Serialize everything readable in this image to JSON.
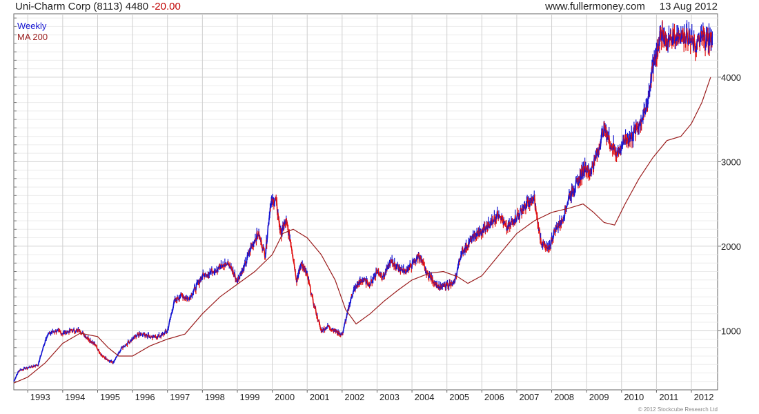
{
  "header": {
    "ticker": "Uni-Charm Corp (8113) 4480",
    "change": "-20.00",
    "site": "www.fullermoney.com",
    "date": "13 Aug 2012"
  },
  "legend": {
    "series1": "Weekly",
    "series2": "MA 200"
  },
  "copyright": "© 2012 Stockcube Research Ltd",
  "colors": {
    "up": "#1414d2",
    "down": "#e01010",
    "ma": "#9a1c1c",
    "grid": "#d7d7d7",
    "frame": "#666666"
  },
  "chart_data": {
    "type": "line",
    "title": "Uni-Charm Corp (8113) 4480 -20.00",
    "xlabel": "",
    "ylabel": "",
    "xlim": [
      1992.6,
      2012.75
    ],
    "ylim": [
      300,
      4750
    ],
    "y_ticks": [
      1000,
      2000,
      3000,
      4000
    ],
    "x_ticks": [
      "1993",
      "1994",
      "1995",
      "1996",
      "1997",
      "1998",
      "1999",
      "2000",
      "2001",
      "2002",
      "2003",
      "2004",
      "2005",
      "2006",
      "2007",
      "2008",
      "2009",
      "2010",
      "2011",
      "2012"
    ],
    "series": [
      {
        "name": "Weekly",
        "x": [
          1992.6,
          1992.75,
          1993.0,
          1993.3,
          1993.55,
          1993.8,
          1994.0,
          1994.25,
          1994.5,
          1994.7,
          1994.9,
          1995.1,
          1995.3,
          1995.45,
          1995.7,
          1996.0,
          1996.2,
          1996.4,
          1996.6,
          1996.8,
          1997.0,
          1997.2,
          1997.4,
          1997.6,
          1997.8,
          1998.0,
          1998.25,
          1998.5,
          1998.75,
          1999.0,
          1999.2,
          1999.4,
          1999.6,
          1999.8,
          1999.95,
          2000.1,
          2000.25,
          2000.4,
          2000.55,
          2000.7,
          2000.85,
          2001.0,
          2001.2,
          2001.4,
          2001.6,
          2001.8,
          2002.0,
          2002.15,
          2002.3,
          2002.45,
          2002.6,
          2002.8,
          2003.0,
          2003.2,
          2003.4,
          2003.6,
          2003.8,
          2004.0,
          2004.2,
          2004.4,
          2004.6,
          2004.8,
          2005.0,
          2005.2,
          2005.4,
          2005.55,
          2005.75,
          2005.9,
          2006.1,
          2006.3,
          2006.5,
          2006.7,
          2006.9,
          2007.1,
          2007.3,
          2007.5,
          2007.7,
          2007.9,
          2008.1,
          2008.3,
          2008.5,
          2008.65,
          2008.8,
          2008.95,
          2009.1,
          2009.3,
          2009.5,
          2009.7,
          2009.9,
          2010.1,
          2010.3,
          2010.5,
          2010.7,
          2010.85,
          2011.0,
          2011.15,
          2011.3,
          2011.5,
          2011.7,
          2011.9,
          2012.1,
          2012.3,
          2012.45,
          2012.6
        ],
        "y": [
          400,
          530,
          560,
          600,
          950,
          1000,
          970,
          1000,
          1000,
          920,
          850,
          720,
          640,
          620,
          800,
          900,
          970,
          950,
          920,
          940,
          1000,
          1350,
          1420,
          1380,
          1500,
          1650,
          1700,
          1750,
          1800,
          1600,
          1750,
          2000,
          2150,
          1900,
          2500,
          2550,
          2150,
          2300,
          2000,
          1600,
          1800,
          1650,
          1300,
          1000,
          1050,
          1000,
          950,
          1200,
          1450,
          1550,
          1600,
          1550,
          1700,
          1650,
          1820,
          1750,
          1700,
          1780,
          1900,
          1700,
          1600,
          1500,
          1550,
          1550,
          1900,
          2000,
          2100,
          2150,
          2200,
          2300,
          2400,
          2200,
          2300,
          2400,
          2500,
          2550,
          2050,
          1950,
          2200,
          2300,
          2600,
          2700,
          2800,
          2950,
          2850,
          3100,
          3400,
          3200,
          3100,
          3250,
          3300,
          3450,
          3600,
          4000,
          4300,
          4550,
          4400,
          4500,
          4500,
          4480,
          4350,
          4480,
          4450,
          4480
        ]
      },
      {
        "name": "MA 200",
        "x": [
          1992.6,
          1993.0,
          1993.5,
          1994.0,
          1994.5,
          1995.0,
          1995.3,
          1995.6,
          1996.0,
          1996.5,
          1997.0,
          1997.5,
          1998.0,
          1998.5,
          1999.0,
          1999.5,
          2000.0,
          2000.3,
          2000.6,
          2001.0,
          2001.4,
          2001.8,
          2002.1,
          2002.4,
          2002.8,
          2003.2,
          2003.6,
          2004.0,
          2004.5,
          2004.9,
          2005.3,
          2005.6,
          2006.0,
          2006.5,
          2007.0,
          2007.5,
          2008.0,
          2008.5,
          2008.9,
          2009.2,
          2009.5,
          2009.8,
          2010.1,
          2010.5,
          2010.9,
          2011.3,
          2011.7,
          2012.0,
          2012.3,
          2012.55
        ],
        "y": [
          380,
          450,
          620,
          850,
          970,
          930,
          800,
          700,
          700,
          820,
          900,
          960,
          1200,
          1400,
          1550,
          1700,
          1900,
          2150,
          2200,
          2100,
          1900,
          1600,
          1250,
          1080,
          1200,
          1350,
          1480,
          1600,
          1680,
          1700,
          1640,
          1560,
          1650,
          1900,
          2150,
          2300,
          2400,
          2450,
          2500,
          2400,
          2280,
          2250,
          2500,
          2800,
          3050,
          3250,
          3300,
          3450,
          3700,
          4000
        ]
      }
    ]
  }
}
